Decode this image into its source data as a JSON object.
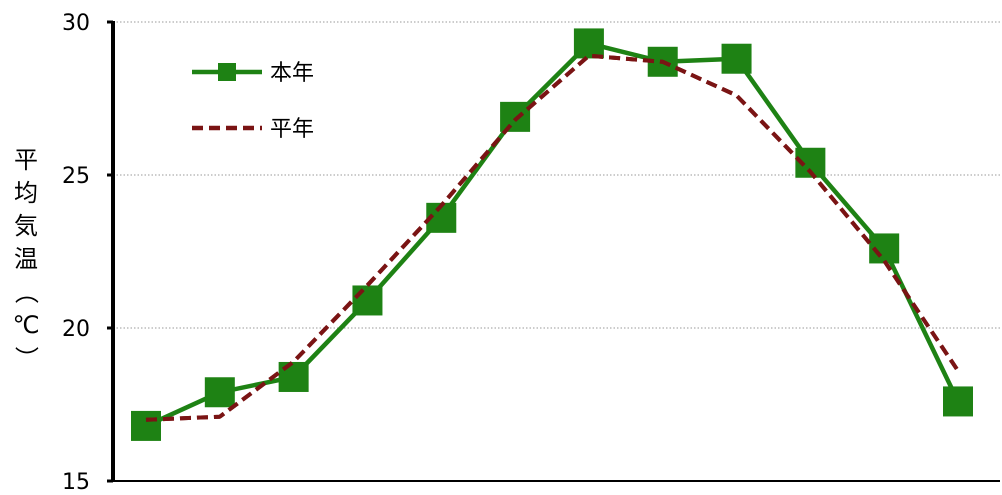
{
  "chart_data": {
    "type": "line",
    "title": "",
    "xlabel": "",
    "ylabel": "平均気温（℃）",
    "ylim": [
      15,
      30
    ],
    "yticks": [
      15,
      20,
      25,
      30
    ],
    "grid": true,
    "legend_position": "top-left",
    "categories": [
      "",
      "",
      "",
      "",
      "",
      "",
      "",
      "",
      "",
      "",
      "",
      ""
    ],
    "series": [
      {
        "name": "本年",
        "color": "#1e8214",
        "style": "solid",
        "marker": "square",
        "values": [
          16.8,
          17.9,
          18.4,
          20.9,
          23.6,
          26.9,
          29.3,
          28.7,
          28.8,
          25.4,
          22.6,
          17.6
        ]
      },
      {
        "name": "平年",
        "color": "#7a1414",
        "style": "dashed",
        "marker": "none",
        "values": [
          17.0,
          17.1,
          18.9,
          21.4,
          24.0,
          26.8,
          28.9,
          28.7,
          27.6,
          25.1,
          22.2,
          18.6
        ]
      }
    ]
  }
}
